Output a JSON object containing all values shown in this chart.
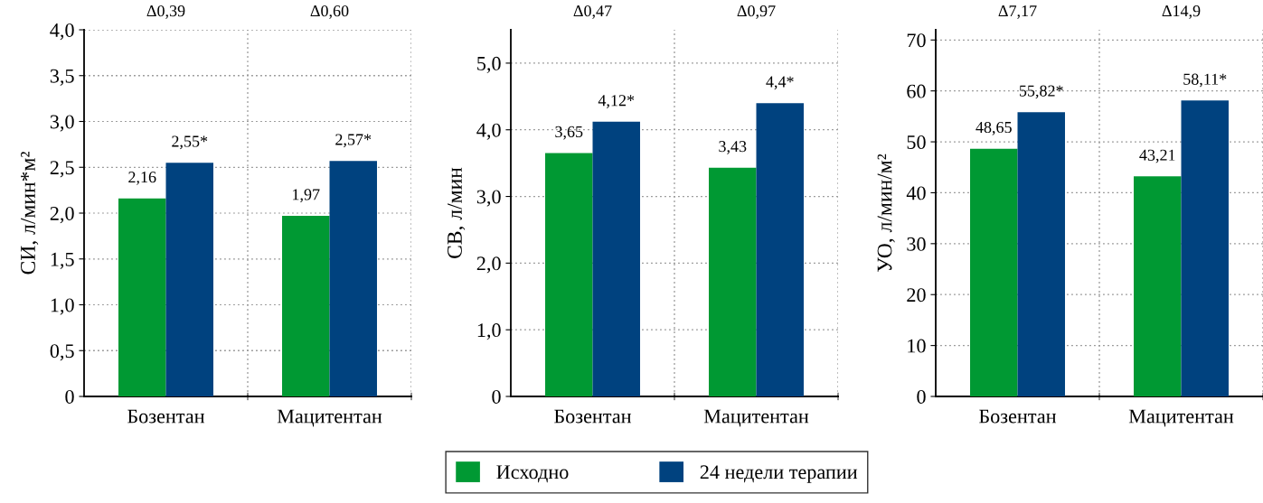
{
  "chart_data": [
    {
      "type": "bar",
      "ylabel": "СИ, л/мин*м²",
      "categories": [
        "Бозентан",
        "Мацитентан"
      ],
      "series": [
        {
          "name": "Исходно",
          "color": "#009933",
          "values": [
            2.16,
            1.97
          ],
          "value_labels": [
            "2,16",
            "1,97"
          ]
        },
        {
          "name": "24 недели терапии",
          "color": "#00427f",
          "values": [
            2.55,
            2.57
          ],
          "value_labels": [
            "2,55*",
            "2,57*"
          ]
        }
      ],
      "annotations": [
        "Δ0,39",
        "Δ0,60"
      ],
      "ylim": [
        0,
        4.0
      ],
      "yticks": [
        0,
        {
          "value": 0.5,
          "label": "0,5"
        },
        {
          "value": 1.0,
          "label": "1,0"
        },
        {
          "value": 1.5,
          "label": "1,5"
        },
        {
          "value": 2.0,
          "label": "2,0"
        },
        {
          "value": 2.5,
          "label": "2,5"
        },
        {
          "value": 3.0,
          "label": "3,0"
        },
        {
          "value": 3.5,
          "label": "3,5"
        },
        {
          "value": 4.0,
          "label": "4,0"
        }
      ],
      "grid": true,
      "legend": "bottom"
    },
    {
      "type": "bar",
      "ylabel": "СВ, л/мин",
      "categories": [
        "Бозентан",
        "Мацитентан"
      ],
      "series": [
        {
          "name": "Исходно",
          "color": "#009933",
          "values": [
            3.65,
            3.43
          ],
          "value_labels": [
            "3,65",
            "3,43"
          ]
        },
        {
          "name": "24 недели терапии",
          "color": "#00427f",
          "values": [
            4.12,
            4.4
          ],
          "value_labels": [
            "4,12*",
            "4,4*"
          ]
        }
      ],
      "annotations": [
        "Δ0,47",
        "Δ0,97"
      ],
      "ylim": [
        0,
        5.5
      ],
      "yticks": [
        0,
        {
          "value": 1.0,
          "label": "1,0"
        },
        {
          "value": 2.0,
          "label": "2,0"
        },
        {
          "value": 3.0,
          "label": "3,0"
        },
        {
          "value": 4.0,
          "label": "4,0"
        },
        {
          "value": 5.0,
          "label": "5,0"
        }
      ],
      "grid": true
    },
    {
      "type": "bar",
      "ylabel": "УО, л/мин/м²",
      "categories": [
        "Бозентан",
        "Мацитентан"
      ],
      "series": [
        {
          "name": "Исходно",
          "color": "#009933",
          "values": [
            48.65,
            43.21
          ],
          "value_labels": [
            "48,65",
            "43,21"
          ]
        },
        {
          "name": "24 недели терапии",
          "color": "#00427f",
          "values": [
            55.82,
            58.11
          ],
          "value_labels": [
            "55,82*",
            "58,11*"
          ]
        }
      ],
      "annotations": [
        "Δ7,17",
        "Δ14,9"
      ],
      "ylim": [
        0,
        72
      ],
      "yticks": [
        0,
        10,
        20,
        30,
        40,
        50,
        60,
        70
      ],
      "grid": true
    }
  ]
}
